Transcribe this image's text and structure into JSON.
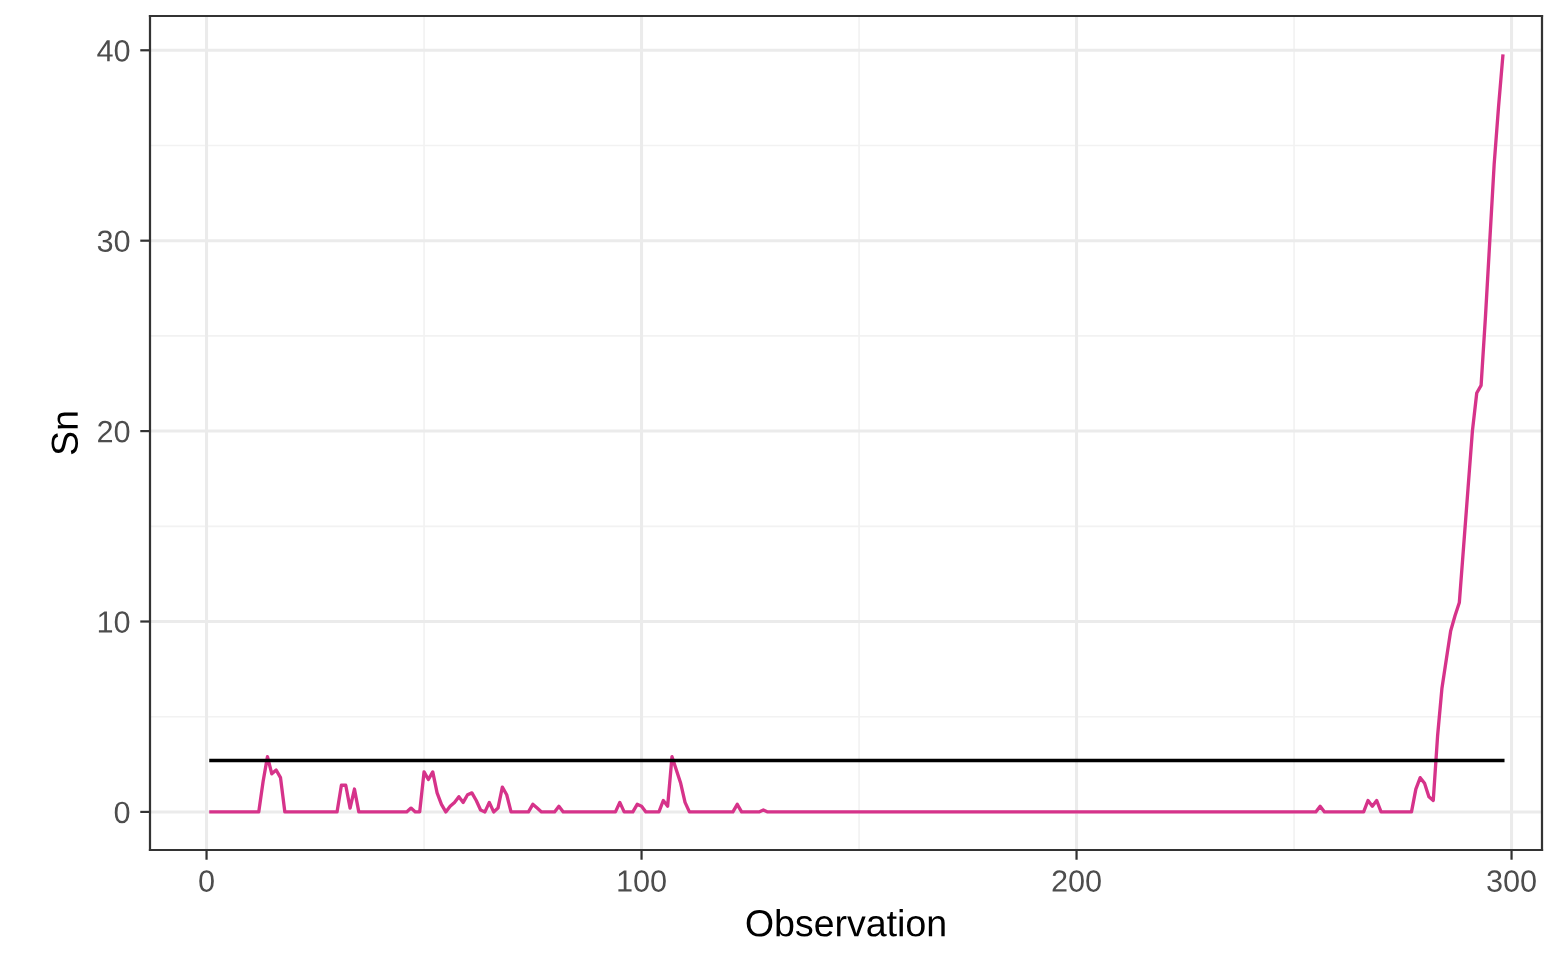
{
  "chart_data": {
    "type": "line",
    "xlabel": "Observation",
    "ylabel": "Sn",
    "xlim": [
      -13,
      307
    ],
    "ylim": [
      -2,
      41.8
    ],
    "xticks": [
      0,
      100,
      200,
      300
    ],
    "yticks": [
      0,
      10,
      20,
      30,
      40
    ],
    "grid": true,
    "legend": false,
    "series": [
      {
        "color": "#d6338a",
        "x": [
          1,
          12,
          13,
          14,
          15,
          16,
          17,
          18,
          30,
          31,
          32,
          33,
          34,
          35,
          46,
          47,
          48,
          49,
          50,
          51,
          52,
          53,
          54,
          55,
          56,
          57,
          58,
          59,
          60,
          61,
          62,
          63,
          64,
          65,
          66,
          67,
          68,
          69,
          70,
          74,
          75,
          76,
          77,
          80,
          81,
          82,
          94,
          95,
          96,
          98,
          99,
          100,
          101,
          104,
          105,
          106,
          107,
          108,
          109,
          110,
          111,
          121,
          122,
          123,
          127,
          128,
          129,
          255,
          256,
          257,
          266,
          267,
          268,
          269,
          270,
          277,
          278,
          279,
          280,
          281,
          282,
          283,
          284,
          285,
          286,
          287,
          288,
          289,
          290,
          291,
          292,
          293,
          294,
          295,
          296,
          297,
          298
        ],
        "values": [
          0,
          0,
          1.6,
          2.9,
          2.0,
          2.2,
          1.8,
          0,
          0,
          1.4,
          1.4,
          0.2,
          1.2,
          0,
          0,
          0.2,
          0,
          0,
          2.1,
          1.7,
          2.1,
          1.0,
          0.4,
          0,
          0.3,
          0.5,
          0.8,
          0.5,
          0.9,
          1.0,
          0.6,
          0.1,
          0,
          0.5,
          0,
          0.2,
          1.3,
          0.9,
          0,
          0,
          0.4,
          0.2,
          0,
          0,
          0.3,
          0,
          0,
          0.5,
          0,
          0,
          0.4,
          0.3,
          0,
          0,
          0.6,
          0.3,
          2.9,
          2.2,
          1.5,
          0.5,
          0,
          0,
          0.4,
          0,
          0,
          0.1,
          0,
          0,
          0.3,
          0,
          0,
          0.6,
          0.3,
          0.6,
          0,
          0,
          1.2,
          1.8,
          1.5,
          0.8,
          0.6,
          4.0,
          6.5,
          8,
          9.5,
          10.3,
          11,
          14,
          17,
          20,
          22,
          22.4,
          26,
          30,
          34,
          37,
          39.7
        ]
      },
      {
        "color": "#000000",
        "x": [
          1,
          298
        ],
        "values": [
          2.7,
          2.7
        ]
      }
    ]
  }
}
